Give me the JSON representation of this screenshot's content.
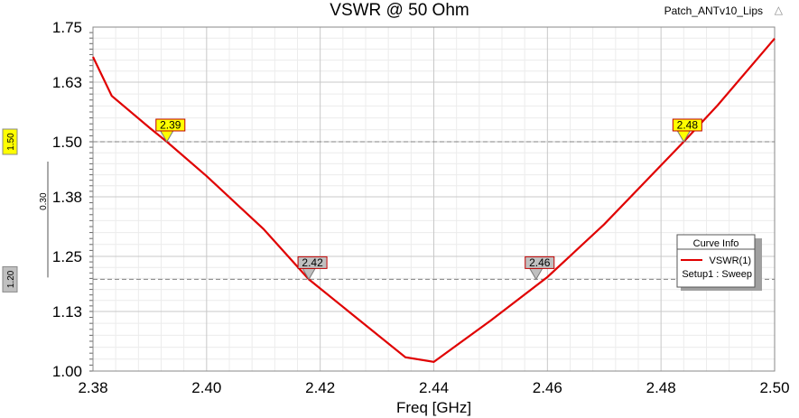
{
  "chart_data": {
    "type": "line",
    "title": "VSWR @ 50 Ohm",
    "project_label": "Patch_ANTv10_Lips",
    "xlabel": "Freq [GHz]",
    "ylabel": "",
    "xlim": [
      2.38,
      2.5
    ],
    "ylim": [
      1.0,
      1.75
    ],
    "x_ticks": [
      "2.38",
      "2.40",
      "2.42",
      "2.44",
      "2.46",
      "2.48",
      "2.50"
    ],
    "y_ticks": [
      "1.00",
      "1.13",
      "1.25",
      "1.38",
      "1.50",
      "1.63",
      "1.75"
    ],
    "grid": true,
    "series": [
      {
        "name": "VSWR(1)",
        "color": "#e00000",
        "x": [
          2.38,
          2.3833,
          2.39,
          2.393,
          2.4,
          2.41,
          2.418,
          2.425,
          2.435,
          2.44,
          2.45,
          2.46,
          2.47,
          2.484,
          2.49,
          2.5
        ],
        "y": [
          1.685,
          1.6,
          1.53,
          1.5,
          1.425,
          1.31,
          1.2,
          1.13,
          1.03,
          1.02,
          1.11,
          1.205,
          1.32,
          1.5,
          1.58,
          1.725
        ]
      }
    ],
    "legend": {
      "title": "Curve Info",
      "entries": [
        {
          "label": "VSWR(1)",
          "sublabel": "Setup1 : Sweep",
          "color": "#e00000"
        }
      ],
      "placement": "right"
    },
    "reference_lines": [
      {
        "y": 1.5,
        "label": "1.50",
        "color": "#ffff00"
      },
      {
        "y": 1.2,
        "label": "1.20",
        "color": "#c0c0c0"
      }
    ],
    "delta_label": "0.30",
    "markers": [
      {
        "x": 2.393,
        "y": 1.5,
        "label": "2.39",
        "color": "#ffff00"
      },
      {
        "x": 2.418,
        "y": 1.2,
        "label": "2.42",
        "color": "#c0c0c0"
      },
      {
        "x": 2.458,
        "y": 1.2,
        "label": "2.46",
        "color": "#c0c0c0"
      },
      {
        "x": 2.484,
        "y": 1.5,
        "label": "2.48",
        "color": "#ffff00"
      }
    ]
  }
}
